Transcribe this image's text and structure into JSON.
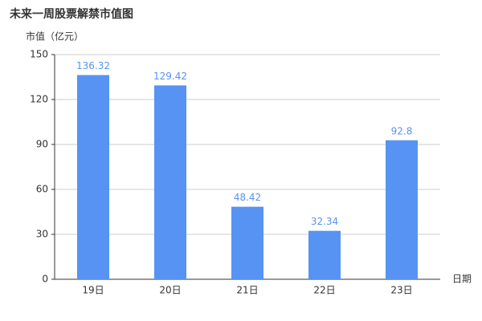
{
  "chart_data": {
    "type": "bar",
    "title": "未来一周股票解禁市值图",
    "y_label": "市值（亿元）",
    "x_label": "日期",
    "categories": [
      "19日",
      "20日",
      "21日",
      "22日",
      "23日"
    ],
    "values": [
      136.32,
      129.42,
      48.42,
      32.34,
      92.8
    ],
    "color": "#5793f3",
    "ylim": [
      0,
      150
    ],
    "yticks": [
      0,
      30,
      60,
      90,
      120,
      150
    ],
    "grid": true
  }
}
